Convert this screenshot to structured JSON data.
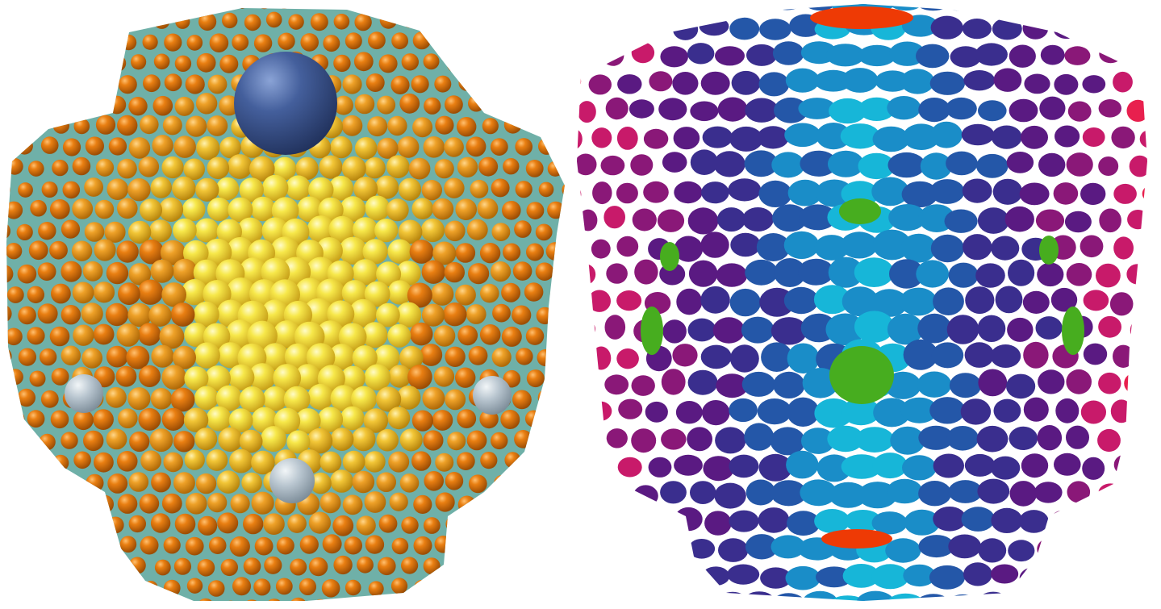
{
  "figure": {
    "background": "#ffffff",
    "panels": [
      {
        "name": "sphere-packing-render",
        "surface_color": "#6fb0a8",
        "sphere_palette": [
          "#f7e84a",
          "#f2c637",
          "#eea128",
          "#e97f12",
          "#d8660a"
        ],
        "defect_colors": [
          "#445f9c",
          "#b8c5cf"
        ]
      },
      {
        "name": "disk-packing-render",
        "disk_palette": [
          "#17b6d8",
          "#1a8dc8",
          "#2457a8",
          "#3a2e8e",
          "#5a1a82",
          "#8a1878",
          "#c81a6a",
          "#e8204e"
        ],
        "defect_colors": [
          "#47ad1f",
          "#ee3a05"
        ]
      }
    ]
  }
}
